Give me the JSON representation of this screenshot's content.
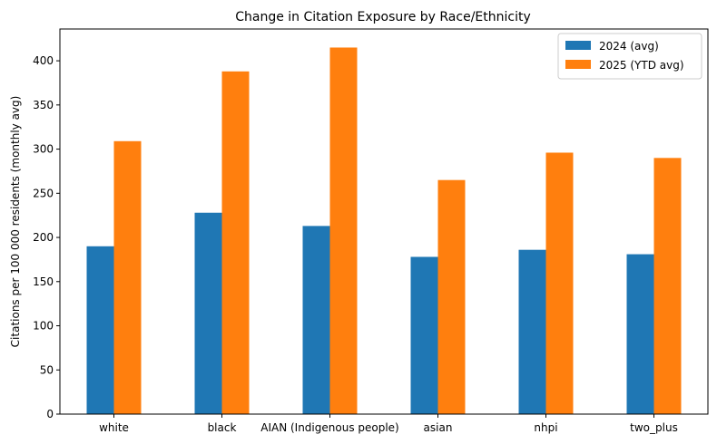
{
  "chart_data": {
    "type": "bar",
    "title": "Change in Citation Exposure by Race/Ethnicity",
    "xlabel": "",
    "ylabel": "Citations per 100 000 residents (monthly avg)",
    "categories": [
      "white",
      "black",
      "AIAN (Indigenous people)",
      "asian",
      "nhpi",
      "two_plus"
    ],
    "series": [
      {
        "name": "2024 (avg)",
        "color": "#1f77b4",
        "values": [
          190,
          228,
          213,
          178,
          186,
          181
        ]
      },
      {
        "name": "2025 (YTD avg)",
        "color": "#ff7f0e",
        "values": [
          309,
          388,
          415,
          265,
          296,
          290
        ]
      }
    ],
    "ylim": [
      0,
      436
    ],
    "yticks": [
      0,
      50,
      100,
      150,
      200,
      250,
      300,
      350,
      400
    ],
    "grid": false,
    "legend_position": "top-right"
  }
}
